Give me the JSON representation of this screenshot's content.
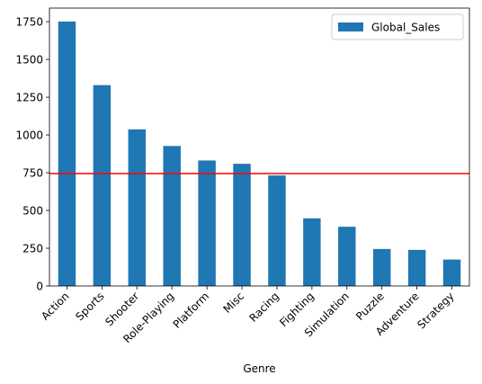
{
  "chart_data": {
    "type": "bar",
    "title": "",
    "xlabel": "Genre",
    "ylabel": "",
    "categories": [
      "Action",
      "Sports",
      "Shooter",
      "Role-Playing",
      "Platform",
      "Misc",
      "Racing",
      "Fighting",
      "Simulation",
      "Puzzle",
      "Adventure",
      "Strategy"
    ],
    "series": [
      {
        "name": "Global_Sales",
        "color": "#1f77b4",
        "values": [
          1751,
          1330,
          1037,
          927,
          831,
          809,
          732,
          448,
          392,
          245,
          239,
          175
        ]
      }
    ],
    "ylim": [
      0,
      1840
    ],
    "yticks": [
      0,
      250,
      500,
      750,
      1000,
      1250,
      1500,
      1750
    ],
    "reference_line": {
      "orientation": "horizontal",
      "value": 744,
      "color": "#ff0000"
    },
    "legend": {
      "placement": "upper-right",
      "entries": [
        "Global_Sales"
      ]
    },
    "grid": false
  }
}
